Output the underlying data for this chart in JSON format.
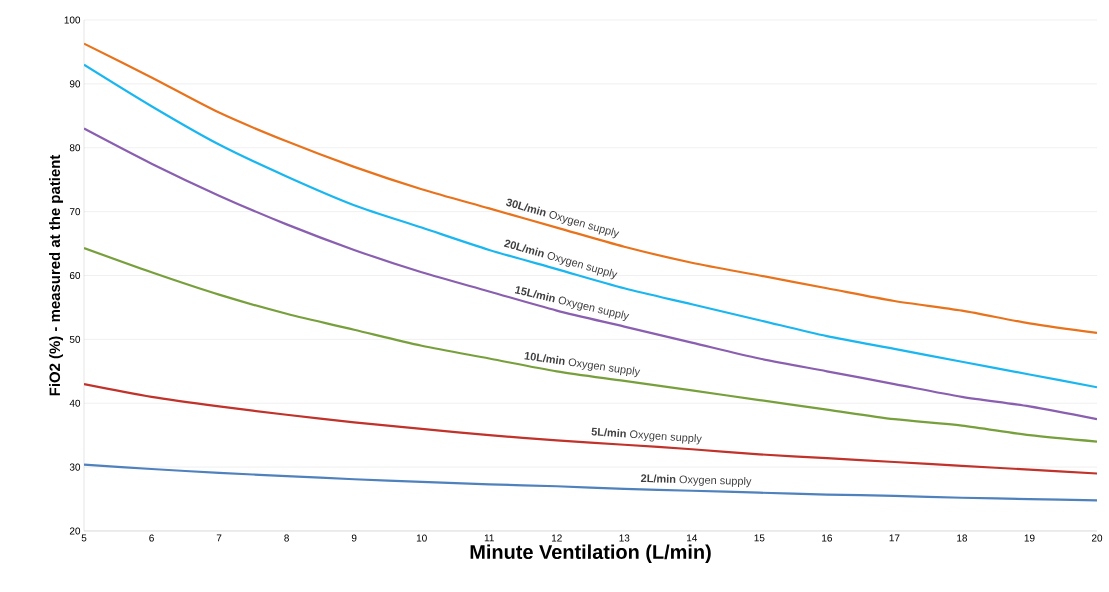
{
  "chart_data": {
    "type": "line",
    "xlabel": "Minute Ventilation (L/min)",
    "ylabel": "FiO2 (%) - measured at the patient",
    "x": [
      5,
      6,
      7,
      8,
      9,
      10,
      11,
      12,
      13,
      14,
      15,
      16,
      17,
      18,
      19,
      20
    ],
    "series": [
      {
        "name": "**30L/min** Oxygen supply",
        "color": "#e8731c",
        "values": [
          96.3,
          91,
          85.5,
          81,
          77,
          73.5,
          70.5,
          67.5,
          64.5,
          62,
          60,
          58,
          56,
          54.5,
          52.5,
          51
        ]
      },
      {
        "name": "**20L/min** Oxygen supply",
        "color": "#1ab6f0",
        "values": [
          93,
          86.5,
          80.5,
          75.5,
          71,
          67.5,
          64,
          61,
          58,
          55.5,
          53,
          50.5,
          48.5,
          46.5,
          44.5,
          42.5
        ]
      },
      {
        "name": "**15L/min** Oxygen supply",
        "color": "#8a5fb0",
        "values": [
          83,
          77.5,
          72.5,
          68,
          64,
          60.5,
          57.5,
          54.5,
          52,
          49.5,
          47,
          45,
          43,
          41,
          39.5,
          37.5
        ]
      },
      {
        "name": "**10L/min** Oxygen supply",
        "color": "#77a03c",
        "values": [
          64.3,
          60.5,
          57,
          54,
          51.5,
          49,
          47,
          45,
          43.5,
          42,
          40.5,
          39,
          37.5,
          36.5,
          35,
          34
        ]
      },
      {
        "name": "**5L/min** Oxygen supply",
        "color": "#c0322a",
        "values": [
          43,
          41,
          39.5,
          38.2,
          37,
          36,
          35,
          34.2,
          33.5,
          32.8,
          32,
          31.4,
          30.8,
          30.2,
          29.6,
          29
        ]
      },
      {
        "name": "**2L/min** Oxygen supply",
        "color": "#4f81bd",
        "values": [
          30.4,
          29.7,
          29.1,
          28.6,
          28.1,
          27.7,
          27.3,
          27,
          26.6,
          26.3,
          26,
          25.7,
          25.5,
          25.2,
          25,
          24.8
        ]
      }
    ],
    "xlim": [
      5,
      20
    ],
    "ylim": [
      20,
      100
    ],
    "xticks": [
      5,
      6,
      7,
      8,
      9,
      10,
      11,
      12,
      13,
      14,
      15,
      16,
      17,
      18,
      19,
      20
    ],
    "yticks": [
      20,
      30,
      40,
      50,
      60,
      70,
      80,
      90,
      100
    ],
    "grid": "y",
    "marker": "none",
    "line_style": "solid"
  }
}
